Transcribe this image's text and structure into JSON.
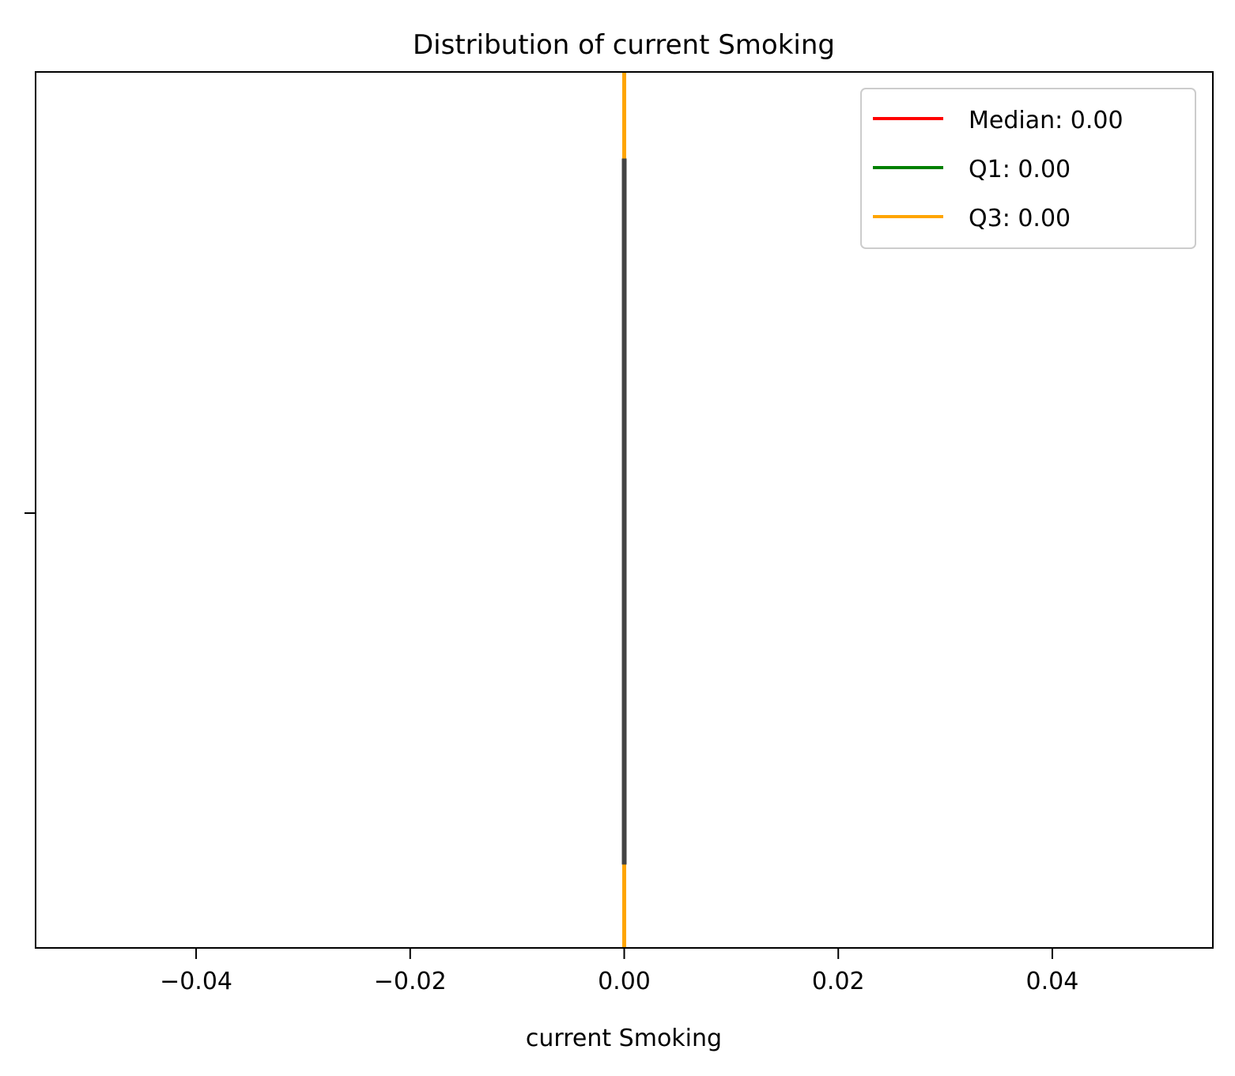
{
  "chart_data": {
    "type": "box",
    "title": "Distribution of current Smoking",
    "xlabel": "current Smoking",
    "ylabel": "",
    "xlim": [
      -0.055,
      0.055
    ],
    "xticks": [
      -0.04,
      -0.02,
      0.0,
      0.02,
      0.04
    ],
    "xtick_labels": [
      "−0.04",
      "−0.02",
      "0.00",
      "0.02",
      "0.04"
    ],
    "grid": false,
    "box": {
      "min": 0.0,
      "q1": 0.0,
      "median": 0.0,
      "q3": 0.0,
      "max": 0.0
    },
    "reference_lines": [
      {
        "name": "Median",
        "label": "Median: 0.00",
        "value": 0.0,
        "color": "#ff0000"
      },
      {
        "name": "Q1",
        "label": "Q1: 0.00",
        "value": 0.0,
        "color": "#008000"
      },
      {
        "name": "Q3",
        "label": "Q3: 0.00",
        "value": 0.0,
        "color": "#ffa500"
      }
    ],
    "box_color": "#444444",
    "legend_placement": "top-right"
  }
}
